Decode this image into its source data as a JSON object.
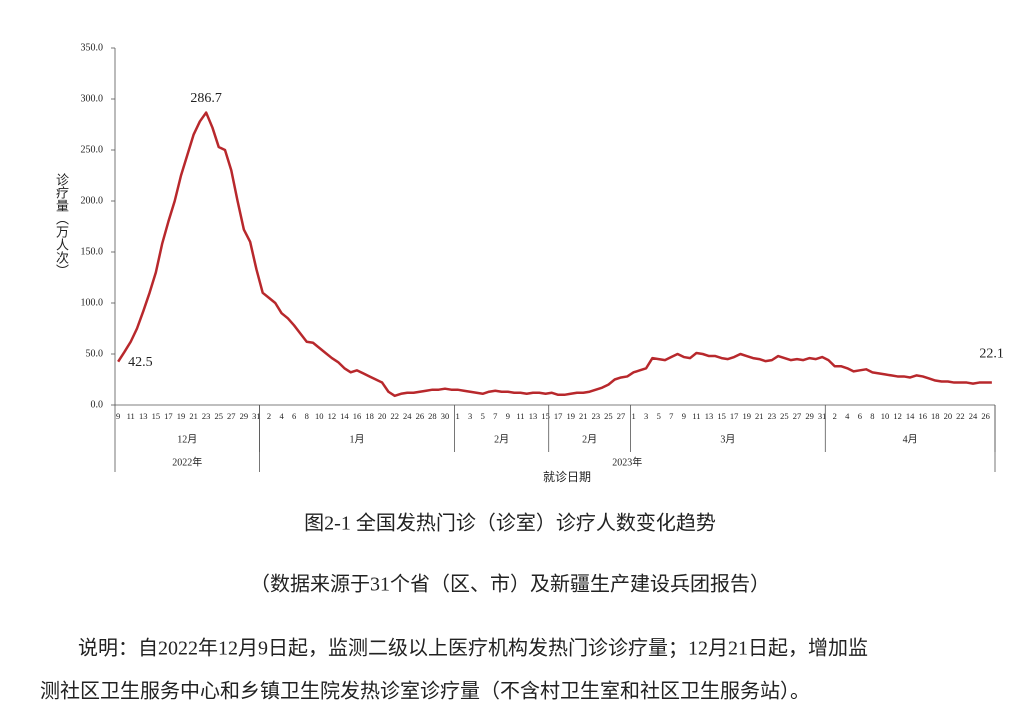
{
  "chart_data": {
    "type": "line",
    "color": "#b8282c",
    "y_label": "诊疗量（万人次）",
    "x_label": "就诊日期",
    "ylim": [
      0,
      350
    ],
    "yticks": [
      {
        "value": 0,
        "label": "0.0"
      },
      {
        "value": 50,
        "label": "50.0"
      },
      {
        "value": 100,
        "label": "100.0"
      },
      {
        "value": 150,
        "label": "150.0"
      },
      {
        "value": 200,
        "label": "200.0"
      },
      {
        "value": 250,
        "label": "250.0"
      },
      {
        "value": 300,
        "label": "300.0"
      },
      {
        "value": 350,
        "label": "350.0"
      }
    ],
    "categories": [
      "9",
      null,
      "11",
      null,
      "13",
      null,
      "15",
      null,
      "17",
      null,
      "19",
      null,
      "21",
      null,
      "23",
      null,
      "25",
      null,
      "27",
      null,
      "29",
      null,
      "31",
      null,
      "2",
      null,
      "4",
      null,
      "6",
      null,
      "8",
      null,
      "10",
      null,
      "12",
      null,
      "14",
      null,
      "16",
      null,
      "18",
      null,
      "20",
      null,
      "22",
      null,
      "24",
      null,
      "26",
      null,
      "28",
      null,
      "30",
      null,
      "1",
      null,
      "3",
      null,
      "5",
      null,
      "7",
      null,
      "9",
      null,
      "11",
      null,
      "13",
      null,
      "15",
      null,
      "17",
      null,
      "19",
      null,
      "21",
      null,
      "23",
      null,
      "25",
      null,
      "27",
      null,
      "1",
      null,
      "3",
      null,
      "5",
      null,
      "7",
      null,
      "9",
      null,
      "11",
      null,
      "13",
      null,
      "15",
      null,
      "17",
      null,
      "19",
      null,
      "21",
      null,
      "23",
      null,
      "25",
      null,
      "27",
      null,
      "29",
      null,
      "31",
      null,
      "2",
      null,
      "4",
      null,
      "6",
      null,
      "8",
      null,
      "10",
      null,
      "12",
      null,
      "14",
      null,
      "16",
      null,
      "18",
      null,
      "20",
      null,
      "22",
      null,
      "24",
      null,
      "26",
      null
    ],
    "values": [
      42.5,
      52,
      62,
      75,
      92,
      110,
      130,
      158,
      180,
      200,
      225,
      245,
      265,
      278,
      286.7,
      272,
      253,
      250,
      230,
      200,
      172,
      160,
      133,
      110,
      105,
      100,
      90,
      85,
      78,
      70,
      62,
      61,
      56,
      51,
      46,
      42,
      36,
      32,
      34,
      31,
      28,
      25,
      22,
      13,
      9,
      11,
      12,
      12,
      13,
      14,
      15,
      15,
      16,
      15,
      15,
      14,
      13,
      12,
      11,
      13,
      14,
      13,
      13,
      12,
      12,
      11,
      12,
      12,
      11,
      12,
      10,
      10,
      11,
      12,
      12,
      13,
      15,
      17,
      20,
      25,
      27,
      28,
      32,
      34,
      36,
      46,
      45,
      44,
      47,
      50,
      47,
      46,
      51,
      50,
      48,
      48,
      46,
      45,
      47,
      50,
      48,
      46,
      45,
      43,
      44,
      48,
      46,
      44,
      45,
      44,
      46,
      45,
      47,
      44,
      38,
      38,
      36,
      33,
      34,
      35,
      32,
      31,
      30,
      29,
      28,
      28,
      27,
      29,
      28,
      26,
      24,
      23,
      23,
      22,
      22,
      22,
      21,
      22,
      22,
      22.1
    ],
    "data_label_indices": [
      0,
      14,
      139
    ],
    "months": [
      {
        "label": "12月",
        "span": 23
      },
      {
        "label": "1月",
        "span": 31
      },
      {
        "label": "2月",
        "span": 15
      },
      {
        "label": "2月",
        "span": 13
      },
      {
        "label": "3月",
        "span": 31
      },
      {
        "label": "4月",
        "span": 27
      }
    ],
    "years": [
      {
        "label": "2022年",
        "span": 23
      },
      {
        "label": "2023年",
        "span": 117
      }
    ]
  },
  "caption": "图2-1  全国发热门诊（诊室）诊疗人数变化趋势",
  "source": "（数据来源于31个省（区、市）及新疆生产建设兵团报告）",
  "note": [
    "说明：自2022年12月9日起，监测二级以上医疗机构发热门诊诊疗量；12月21日起，增加监",
    "测社区卫生服务中心和乡镇卫生院发热诊室诊疗量（不含村卫生室和社区卫生服务站）。"
  ]
}
